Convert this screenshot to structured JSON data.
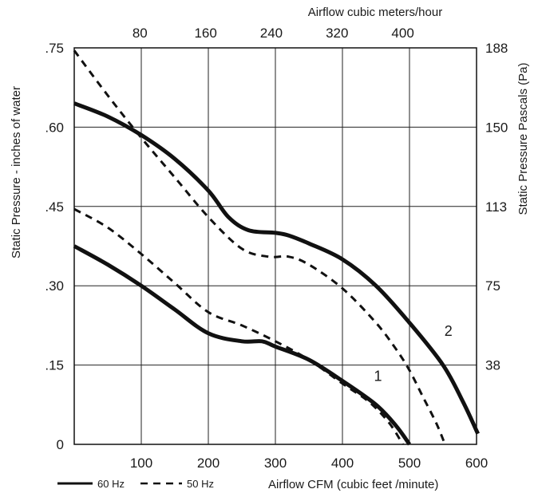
{
  "chart_data": {
    "type": "line",
    "x_top_title": "Airflow cubic meters/hour",
    "x_bottom_title": "Airflow  CFM (cubic feet /minute)",
    "y_left_title": "Static Pressure - inches of water",
    "y_right_title": "Static Pressure Pascals (Pa)",
    "xlim": [
      0,
      600
    ],
    "ylim": [
      0,
      0.75
    ],
    "grid": true,
    "x_ticks": [
      {
        "value": 100,
        "label": "100"
      },
      {
        "value": 200,
        "label": "200"
      },
      {
        "value": 300,
        "label": "300"
      },
      {
        "value": 400,
        "label": "400"
      },
      {
        "value": 500,
        "label": "500"
      },
      {
        "value": 600,
        "label": "600"
      }
    ],
    "y_ticks": [
      {
        "value": 0,
        "label": "0"
      },
      {
        "value": 0.15,
        "label": ".15"
      },
      {
        "value": 0.3,
        "label": ".30"
      },
      {
        "value": 0.45,
        "label": ".45"
      },
      {
        "value": 0.6,
        "label": ".60"
      },
      {
        "value": 0.75,
        "label": ".75"
      }
    ],
    "x_top_ticks": [
      {
        "value": 98,
        "label": "80"
      },
      {
        "value": 196,
        "label": "160"
      },
      {
        "value": 294,
        "label": "240"
      },
      {
        "value": 392,
        "label": "320"
      },
      {
        "value": 490,
        "label": "400"
      }
    ],
    "y_right_ticks": [
      {
        "value": 0.15,
        "label": "38"
      },
      {
        "value": 0.3,
        "label": "75"
      },
      {
        "value": 0.45,
        "label": "113"
      },
      {
        "value": 0.6,
        "label": "150"
      },
      {
        "value": 0.75,
        "label": "188"
      }
    ],
    "series": [
      {
        "name": "60 Hz",
        "curve": "2",
        "style": "solid",
        "x": [
          0,
          50,
          100,
          150,
          200,
          230,
          260,
          300,
          320,
          350,
          400,
          450,
          500,
          550,
          580,
          602
        ],
        "y": [
          0.645,
          0.62,
          0.585,
          0.54,
          0.48,
          0.43,
          0.405,
          0.4,
          0.395,
          0.38,
          0.35,
          0.3,
          0.23,
          0.15,
          0.08,
          0.02
        ]
      },
      {
        "name": "50 Hz",
        "curve": "2",
        "style": "dashed",
        "x": [
          0,
          50,
          100,
          150,
          200,
          250,
          290,
          320,
          350,
          400,
          450,
          480,
          500,
          520,
          540,
          553
        ],
        "y": [
          0.745,
          0.66,
          0.58,
          0.505,
          0.43,
          0.37,
          0.355,
          0.355,
          0.34,
          0.295,
          0.23,
          0.18,
          0.14,
          0.09,
          0.04,
          0.0
        ]
      },
      {
        "name": "60 Hz",
        "curve": "1",
        "style": "solid",
        "x": [
          0,
          50,
          100,
          150,
          200,
          250,
          280,
          300,
          350,
          400,
          450,
          480,
          500
        ],
        "y": [
          0.375,
          0.34,
          0.3,
          0.255,
          0.21,
          0.195,
          0.195,
          0.185,
          0.16,
          0.12,
          0.075,
          0.035,
          0.0
        ]
      },
      {
        "name": "50 Hz",
        "curve": "1",
        "style": "dashed",
        "x": [
          0,
          50,
          100,
          150,
          200,
          250,
          300,
          350,
          400,
          440,
          470,
          490
        ],
        "y": [
          0.445,
          0.41,
          0.36,
          0.305,
          0.25,
          0.225,
          0.195,
          0.16,
          0.115,
          0.08,
          0.04,
          0.0
        ]
      }
    ],
    "curve_labels": [
      {
        "text": "1",
        "x": 453,
        "y": 0.12
      },
      {
        "text": "2",
        "x": 558,
        "y": 0.205
      }
    ],
    "legend": {
      "placement": "bottom-left",
      "items": [
        {
          "label": "60 Hz",
          "style": "solid"
        },
        {
          "label": "50 Hz",
          "style": "dashed"
        }
      ]
    }
  }
}
